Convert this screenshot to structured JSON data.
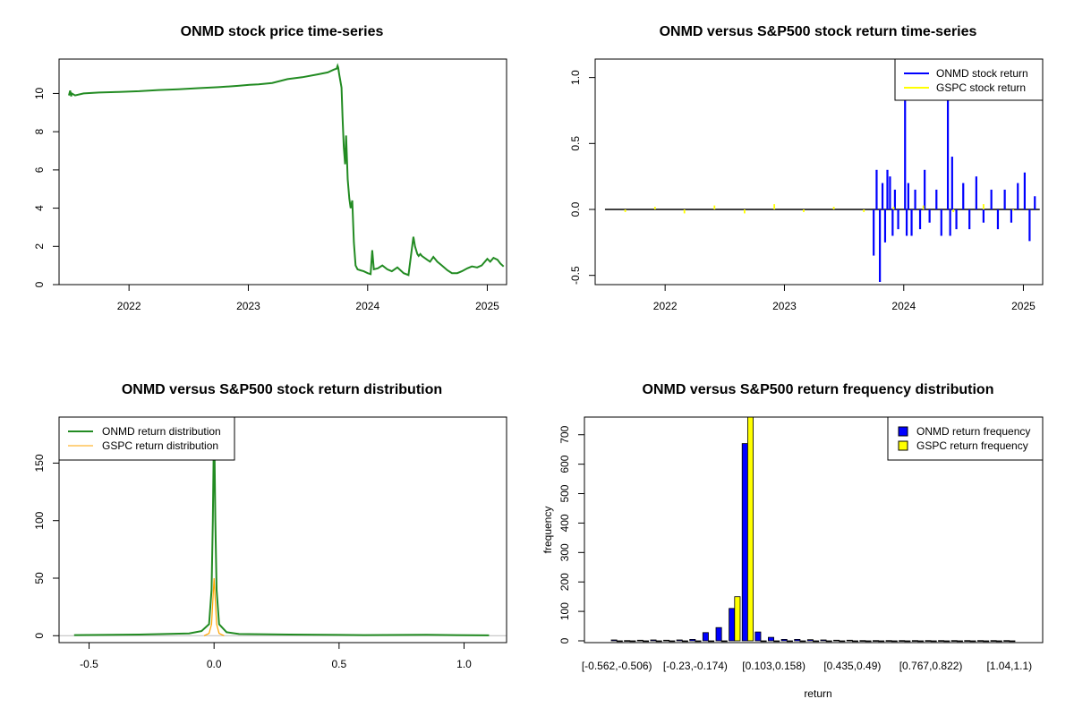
{
  "chart_data": [
    {
      "id": "price",
      "type": "line",
      "title": "ONMD stock price time-series",
      "xlabel": "",
      "ylabel": "",
      "x_ticks": [
        "2022",
        "2023",
        "2024",
        "2025"
      ],
      "y_ticks": [
        "0",
        "2",
        "4",
        "6",
        "8",
        "10"
      ],
      "xlim": [
        "2021-06-01",
        "2025-03-01"
      ],
      "ylim": [
        0,
        11.8
      ],
      "color": "#228B22",
      "series": [
        {
          "x": [
            "2021-07-01",
            "2021-07-05",
            "2021-07-08",
            "2021-07-10",
            "2021-07-20",
            "2021-08-15",
            "2021-10-01",
            "2021-12-01",
            "2022-02-01",
            "2022-04-01",
            "2022-06-01",
            "2022-08-01",
            "2022-10-01",
            "2022-12-01",
            "2023-01-05",
            "2023-02-01",
            "2023-03-15",
            "2023-05-01",
            "2023-06-15",
            "2023-08-01",
            "2023-09-01",
            "2023-09-20",
            "2023-09-28",
            "2023-10-01",
            "2023-10-03",
            "2023-10-06",
            "2023-10-10",
            "2023-10-13",
            "2023-10-16",
            "2023-10-20",
            "2023-10-24",
            "2023-10-27",
            "2023-11-01",
            "2023-11-06",
            "2023-11-10",
            "2023-11-15",
            "2023-11-20",
            "2023-11-25",
            "2023-12-01",
            "2023-12-10",
            "2023-12-20",
            "2024-01-01",
            "2024-01-10",
            "2024-01-15",
            "2024-01-20",
            "2024-02-01",
            "2024-02-15",
            "2024-03-01",
            "2024-03-15",
            "2024-04-01",
            "2024-04-20",
            "2024-05-05",
            "2024-05-20",
            "2024-05-25",
            "2024-06-01",
            "2024-06-05",
            "2024-06-10",
            "2024-06-15",
            "2024-07-01",
            "2024-07-10",
            "2024-07-20",
            "2024-08-01",
            "2024-08-15",
            "2024-09-01",
            "2024-09-15",
            "2024-10-01",
            "2024-10-15",
            "2024-11-01",
            "2024-11-15",
            "2024-12-01",
            "2024-12-15",
            "2025-01-01",
            "2025-01-10",
            "2025-01-20",
            "2025-02-01",
            "2025-02-10",
            "2025-02-20"
          ],
          "y": [
            9.9,
            10.15,
            9.85,
            10.0,
            9.9,
            10.0,
            10.05,
            10.08,
            10.12,
            10.18,
            10.22,
            10.28,
            10.33,
            10.4,
            10.45,
            10.48,
            10.55,
            10.75,
            10.85,
            11.0,
            11.1,
            11.25,
            11.3,
            11.45,
            11.35,
            11.0,
            10.6,
            10.3,
            8.8,
            7.2,
            6.3,
            7.8,
            5.5,
            4.5,
            4.0,
            4.4,
            2.2,
            1.0,
            0.8,
            0.75,
            0.7,
            0.6,
            0.55,
            1.8,
            0.8,
            0.85,
            1.0,
            0.8,
            0.7,
            0.9,
            0.6,
            0.5,
            2.5,
            2.0,
            1.6,
            1.5,
            1.6,
            1.5,
            1.3,
            1.2,
            1.45,
            1.2,
            1.0,
            0.75,
            0.6,
            0.6,
            0.7,
            0.85,
            0.95,
            0.9,
            1.0,
            1.35,
            1.2,
            1.4,
            1.3,
            1.1,
            0.95
          ]
        }
      ]
    },
    {
      "id": "returns",
      "type": "line",
      "title": "ONMD versus S&P500 stock return time-series",
      "xlabel": "",
      "ylabel": "",
      "x_ticks": [
        "2022",
        "2023",
        "2024",
        "2025"
      ],
      "y_ticks": [
        "-0.5",
        "0.0",
        "0.5",
        "1.0"
      ],
      "xlim": [
        "2021-06-01",
        "2025-03-01"
      ],
      "ylim": [
        -0.57,
        1.14
      ],
      "legend": {
        "position": "top-right",
        "entries": [
          {
            "label": "ONMD stock return",
            "color": "#0000FF"
          },
          {
            "label": "GSPC stock return",
            "color": "#FFFF00"
          }
        ]
      },
      "series": [
        {
          "name": "ONMD stock return",
          "color": "#0000FF",
          "x": [
            "2023-10-01",
            "2023-10-10",
            "2023-10-20",
            "2023-10-28",
            "2023-11-05",
            "2023-11-12",
            "2023-11-20",
            "2023-11-28",
            "2023-12-05",
            "2023-12-15",
            "2024-01-05",
            "2024-01-10",
            "2024-01-15",
            "2024-01-25",
            "2024-02-05",
            "2024-02-20",
            "2024-03-05",
            "2024-03-20",
            "2024-04-10",
            "2024-04-25",
            "2024-05-15",
            "2024-05-22",
            "2024-05-28",
            "2024-06-10",
            "2024-07-01",
            "2024-07-20",
            "2024-08-10",
            "2024-09-01",
            "2024-09-25",
            "2024-10-15",
            "2024-11-05",
            "2024-11-25",
            "2024-12-15",
            "2025-01-05",
            "2025-01-20",
            "2025-02-05"
          ],
          "y": [
            -0.35,
            0.3,
            -0.55,
            0.2,
            -0.25,
            0.3,
            0.25,
            -0.2,
            0.15,
            -0.15,
            0.85,
            -0.2,
            0.2,
            -0.2,
            0.15,
            -0.15,
            0.3,
            -0.1,
            0.15,
            -0.2,
            0.85,
            -0.2,
            0.4,
            -0.15,
            0.2,
            -0.15,
            0.25,
            -0.1,
            0.15,
            -0.15,
            0.15,
            -0.1,
            0.2,
            0.28,
            -0.24,
            0.1
          ]
        },
        {
          "name": "GSPC stock return",
          "color": "#FFFF00",
          "x": [
            "2021-09-01",
            "2021-12-01",
            "2022-03-01",
            "2022-06-01",
            "2022-09-01",
            "2022-12-01",
            "2023-03-01",
            "2023-06-01",
            "2023-09-01",
            "2023-12-01",
            "2024-03-01",
            "2024-06-01",
            "2024-09-01",
            "2024-12-01"
          ],
          "y": [
            -0.02,
            0.02,
            -0.03,
            0.03,
            -0.03,
            0.04,
            -0.02,
            0.02,
            -0.02,
            0.02,
            0.03,
            -0.02,
            0.04,
            -0.01
          ]
        }
      ]
    },
    {
      "id": "density",
      "type": "line",
      "title": "ONMD versus S&P500 stock return distribution",
      "xlabel": "",
      "ylabel": "",
      "x_ticks": [
        "-0.5",
        "0.0",
        "0.5",
        "1.0"
      ],
      "y_ticks": [
        "0",
        "50",
        "100",
        "150"
      ],
      "xlim": [
        -0.62,
        1.17
      ],
      "ylim": [
        -6,
        190
      ],
      "legend": {
        "position": "top-left",
        "entries": [
          {
            "label": "ONMD return distribution",
            "color": "#228B22"
          },
          {
            "label": "GSPC return distribution",
            "color": "#FFA500"
          }
        ]
      },
      "series": [
        {
          "name": "ONMD return distribution",
          "color": "#228B22",
          "x": [
            -0.56,
            -0.3,
            -0.1,
            -0.05,
            -0.02,
            -0.01,
            -0.005,
            0.0,
            0.005,
            0.01,
            0.02,
            0.05,
            0.1,
            0.3,
            0.6,
            0.85,
            1.1
          ],
          "y": [
            0.5,
            1,
            2,
            4,
            10,
            40,
            100,
            190,
            100,
            40,
            10,
            3,
            1.5,
            1,
            0.5,
            0.8,
            0.3
          ]
        },
        {
          "name": "GSPC return distribution",
          "color": "#FFA500",
          "x": [
            -0.04,
            -0.02,
            -0.01,
            -0.005,
            0.0,
            0.005,
            0.01,
            0.02,
            0.04
          ],
          "y": [
            0,
            2,
            10,
            30,
            50,
            30,
            10,
            2,
            0
          ]
        }
      ]
    },
    {
      "id": "freq",
      "type": "bar",
      "title": "ONMD versus S&P500 return frequency distribution",
      "xlabel": "return",
      "ylabel": "frequency",
      "y_ticks": [
        "0",
        "100",
        "200",
        "300",
        "400",
        "500",
        "600",
        "700"
      ],
      "ylim": [
        0,
        760
      ],
      "x_tick_labels": [
        {
          "bin": 0,
          "label": "[-0.562,-0.506)"
        },
        {
          "bin": 6,
          "label": "[-0.23,-0.174)"
        },
        {
          "bin": 12,
          "label": "[0.103,0.158)"
        },
        {
          "bin": 18,
          "label": "[0.435,0.49)"
        },
        {
          "bin": 24,
          "label": "[0.767,0.822)"
        },
        {
          "bin": 30,
          "label": "[1.04,1.1)"
        }
      ],
      "legend": {
        "position": "top-right",
        "entries": [
          {
            "label": "ONMD return frequency",
            "color": "#0000FF"
          },
          {
            "label": "GSPC return frequency",
            "color": "#FFFF00"
          }
        ]
      },
      "series": [
        {
          "name": "ONMD return frequency",
          "color": "#0000FF",
          "values": [
            3,
            1,
            2,
            3,
            2,
            3,
            5,
            28,
            45,
            110,
            670,
            30,
            12,
            5,
            5,
            4,
            3,
            2,
            2,
            1,
            1,
            1,
            1,
            1,
            1,
            1,
            1,
            1,
            1,
            1,
            1
          ]
        },
        {
          "name": "GSPC return frequency",
          "color": "#FFFF00",
          "values": [
            0,
            0,
            0,
            0,
            0,
            0,
            0,
            0,
            0,
            150,
            800,
            0,
            0,
            0,
            0,
            0,
            0,
            0,
            0,
            0,
            0,
            0,
            0,
            0,
            0,
            0,
            0,
            0,
            0,
            0,
            0
          ]
        }
      ]
    }
  ]
}
